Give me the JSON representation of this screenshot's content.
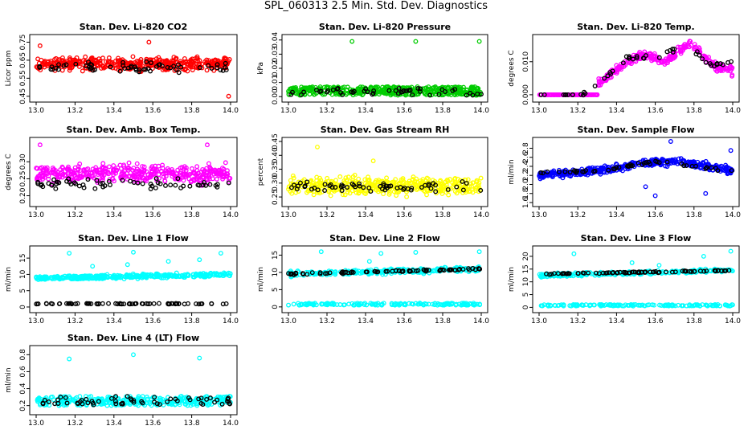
{
  "title": "SPL_060313 2.5 Min. Std. Dev. Diagnostics",
  "colors": {
    "black": "#000000",
    "red": "#ff0000",
    "green": "#00cc00",
    "magenta": "#ff00ff",
    "yellow": "#ffff00",
    "blue": "#0000ff",
    "cyan": "#00ffff"
  },
  "chart_data": [
    {
      "type": "scatter",
      "title": "Stan. Dev. Li-820 CO2",
      "ylabel": "Licor ppm",
      "xlim": [
        13.0,
        14.0
      ],
      "ylim": [
        0.44,
        0.77
      ],
      "xticks": [
        "13.0",
        "13.2",
        "13.4",
        "13.6",
        "13.8",
        "14.0"
      ],
      "yticks": [
        "0.45",
        "0.55",
        "0.65",
        "0.75"
      ],
      "ytick_values": [
        0.45,
        0.55,
        0.65,
        0.75
      ],
      "color": "red",
      "series": [
        {
          "name": "primary",
          "color": "red",
          "model": {
            "kind": "noise",
            "base": 0.63,
            "spread": 0.05,
            "n": 420
          },
          "outliers": [
            [
              13.58,
              0.75
            ],
            [
              13.99,
              0.45
            ],
            [
              13.02,
              0.73
            ]
          ]
        },
        {
          "name": "secondary",
          "color": "black",
          "model": {
            "kind": "noise",
            "base": 0.61,
            "spread": 0.04,
            "n": 60
          }
        }
      ]
    },
    {
      "type": "scatter",
      "title": "Stan. Dev. Li-820 Pressure",
      "ylabel": "kPa",
      "xlim": [
        13.0,
        14.0
      ],
      "ylim": [
        -0.001,
        0.041
      ],
      "xticks": [
        "13.0",
        "13.2",
        "13.4",
        "13.6",
        "13.8",
        "14.0"
      ],
      "yticks": [
        "0.00",
        "0.01",
        "0.02",
        "0.03",
        "0.04"
      ],
      "ytick_values": [
        0.0,
        0.01,
        0.02,
        0.03,
        0.04
      ],
      "color": "green",
      "series": [
        {
          "name": "primary",
          "color": "green",
          "model": {
            "kind": "band",
            "lo": 0.001,
            "hi": 0.007,
            "n": 420
          },
          "outliers": [
            [
              13.33,
              0.039
            ],
            [
              13.66,
              0.039
            ],
            [
              13.99,
              0.039
            ]
          ]
        },
        {
          "name": "secondary",
          "color": "black",
          "model": {
            "kind": "band",
            "lo": 0.001,
            "hi": 0.006,
            "n": 50
          }
        }
      ]
    },
    {
      "type": "scatter",
      "title": "Stan. Dev. Li-820 Temp.",
      "ylabel": "degrees C",
      "xlim": [
        13.0,
        14.0
      ],
      "ylim": [
        -0.001,
        0.017
      ],
      "xticks": [
        "13.0",
        "13.2",
        "13.4",
        "13.6",
        "13.8",
        "14.0"
      ],
      "yticks": [
        "0.000",
        "0.010"
      ],
      "ytick_values": [
        0.0,
        0.01
      ],
      "color": "magenta",
      "series": [
        {
          "name": "primary",
          "color": "magenta",
          "model": {
            "kind": "curve",
            "points": [
              [
                13.0,
                0.0
              ],
              [
                13.3,
                0.0
              ],
              [
                13.3,
                0.003
              ],
              [
                13.45,
                0.01
              ],
              [
                13.55,
                0.012
              ],
              [
                13.65,
                0.01
              ],
              [
                13.78,
                0.016
              ],
              [
                13.9,
                0.009
              ],
              [
                14.0,
                0.007
              ]
            ],
            "spread": 0.0018,
            "n": 380,
            "flatUntil": 13.3
          }
        },
        {
          "name": "secondary",
          "color": "black",
          "model": {
            "kind": "curve",
            "points": [
              [
                13.0,
                0.0
              ],
              [
                13.2,
                0.0
              ],
              [
                13.3,
                0.003
              ],
              [
                13.45,
                0.011
              ],
              [
                13.6,
                0.011
              ],
              [
                13.75,
                0.015
              ],
              [
                13.9,
                0.009
              ],
              [
                14.0,
                0.01
              ]
            ],
            "spread": 0.0012,
            "n": 50,
            "flatUntil": 13.2
          }
        }
      ]
    },
    {
      "type": "scatter",
      "title": "Stan. Dev. Amb. Box Temp.",
      "ylabel": "degrees C",
      "xlim": [
        13.0,
        14.0
      ],
      "ylim": [
        0.18,
        0.36
      ],
      "xticks": [
        "13.0",
        "13.2",
        "13.4",
        "13.6",
        "13.8",
        "14.0"
      ],
      "yticks": [
        "0.20",
        "0.25",
        "0.30"
      ],
      "ytick_values": [
        0.2,
        0.25,
        0.3
      ],
      "color": "magenta",
      "series": [
        {
          "name": "primary",
          "color": "magenta",
          "model": {
            "kind": "noise",
            "base": 0.265,
            "spread": 0.04,
            "n": 420
          },
          "outliers": [
            [
              13.88,
              0.35
            ],
            [
              13.02,
              0.35
            ]
          ]
        },
        {
          "name": "secondary",
          "color": "black",
          "model": {
            "kind": "noise",
            "base": 0.235,
            "spread": 0.02,
            "n": 60
          }
        }
      ]
    },
    {
      "type": "scatter",
      "title": "Stan. Dev. Gas Stream RH",
      "ylabel": "percent",
      "xlim": [
        13.0,
        14.0
      ],
      "ylim": [
        0.23,
        0.45
      ],
      "xticks": [
        "13.0",
        "13.2",
        "13.4",
        "13.6",
        "13.8",
        "14.0"
      ],
      "yticks": [
        "0.25",
        "0.30",
        "0.35",
        "0.40",
        "0.45"
      ],
      "ytick_values": [
        0.25,
        0.3,
        0.35,
        0.4,
        0.45
      ],
      "color": "yellow",
      "series": [
        {
          "name": "primary",
          "color": "yellow",
          "model": {
            "kind": "noise",
            "base": 0.29,
            "spread": 0.045,
            "n": 420
          },
          "outliers": [
            [
              13.15,
              0.43
            ],
            [
              13.44,
              0.38
            ]
          ]
        },
        {
          "name": "secondary",
          "color": "black",
          "model": {
            "kind": "noise",
            "base": 0.285,
            "spread": 0.025,
            "n": 60
          }
        }
      ]
    },
    {
      "type": "scatter",
      "title": "Stan. Dev. Sample Flow",
      "ylabel": "ml/min",
      "xlim": [
        13.0,
        14.0
      ],
      "ylim": [
        1.6,
        2.95
      ],
      "xticks": [
        "13.0",
        "13.2",
        "13.4",
        "13.6",
        "13.8",
        "14.0"
      ],
      "yticks": [
        "1.6",
        "1.8",
        "2.0",
        "2.2",
        "2.4",
        "2.6",
        "2.8"
      ],
      "ytick_values": [
        1.6,
        1.8,
        2.0,
        2.2,
        2.4,
        2.6,
        2.8
      ],
      "color": "blue",
      "series": [
        {
          "name": "primary",
          "color": "blue",
          "model": {
            "kind": "curve",
            "points": [
              [
                13.0,
                2.2
              ],
              [
                13.3,
                2.3
              ],
              [
                13.6,
                2.5
              ],
              [
                13.75,
                2.5
              ],
              [
                14.0,
                2.3
              ]
            ],
            "spread": 0.12,
            "n": 420
          },
          "outliers": [
            [
              13.68,
              2.95
            ],
            [
              13.86,
              1.8
            ],
            [
              13.6,
              1.75
            ],
            [
              13.55,
              1.95
            ],
            [
              13.99,
              2.75
            ]
          ]
        },
        {
          "name": "secondary",
          "color": "black",
          "model": {
            "kind": "curve",
            "points": [
              [
                13.0,
                2.25
              ],
              [
                13.3,
                2.3
              ],
              [
                13.6,
                2.5
              ],
              [
                14.0,
                2.3
              ]
            ],
            "spread": 0.05,
            "n": 50
          }
        }
      ]
    },
    {
      "type": "scatter",
      "title": "Stan. Dev. Line 1 Flow",
      "ylabel": "ml/min",
      "xlim": [
        13.0,
        14.0
      ],
      "ylim": [
        -0.5,
        17.5
      ],
      "xticks": [
        "13.0",
        "13.2",
        "13.4",
        "13.6",
        "13.8",
        "14.0"
      ],
      "yticks": [
        "0",
        "5",
        "10",
        "15"
      ],
      "ytick_values": [
        0,
        5,
        10,
        15
      ],
      "color": "cyan",
      "series": [
        {
          "name": "primary",
          "color": "cyan",
          "model": {
            "kind": "curve",
            "points": [
              [
                13.0,
                8.8
              ],
              [
                14.0,
                10.0
              ]
            ],
            "spread": 0.9,
            "n": 360
          },
          "outliers": [
            [
              13.17,
              16.5
            ],
            [
              13.5,
              16.8
            ],
            [
              13.95,
              16.5
            ],
            [
              13.47,
              13.0
            ],
            [
              13.29,
              12.5
            ],
            [
              13.68,
              14.0
            ],
            [
              13.84,
              14.5
            ]
          ]
        },
        {
          "name": "secondary",
          "color": "black",
          "model": {
            "kind": "band",
            "lo": 0.9,
            "hi": 1.1,
            "n": 70
          }
        }
      ]
    },
    {
      "type": "scatter",
      "title": "Stan. Dev. Line 2 Flow",
      "ylabel": "ml/min",
      "xlim": [
        13.0,
        14.0
      ],
      "ylim": [
        -0.5,
        16.5
      ],
      "xticks": [
        "13.0",
        "13.2",
        "13.4",
        "13.6",
        "13.8",
        "14.0"
      ],
      "yticks": [
        "0",
        "5",
        "10",
        "15"
      ],
      "ytick_values": [
        0,
        5,
        10,
        15
      ],
      "color": "cyan",
      "series": [
        {
          "name": "primary",
          "color": "cyan",
          "model": {
            "kind": "curve",
            "points": [
              [
                13.0,
                9.5
              ],
              [
                14.0,
                11.0
              ]
            ],
            "spread": 1.0,
            "n": 280
          },
          "outliers": [
            [
              13.17,
              16.0
            ],
            [
              13.48,
              15.5
            ],
            [
              13.66,
              15.8
            ],
            [
              13.99,
              16.0
            ],
            [
              13.42,
              13.2
            ]
          ]
        },
        {
          "name": "secondary",
          "color": "black",
          "model": {
            "kind": "curve",
            "points": [
              [
                13.0,
                9.5
              ],
              [
                14.0,
                11.0
              ]
            ],
            "spread": 0.4,
            "n": 80
          }
        },
        {
          "name": "tertiary",
          "color": "cyan",
          "model": {
            "kind": "band",
            "lo": 0.5,
            "hi": 1.1,
            "n": 150
          }
        }
      ]
    },
    {
      "type": "scatter",
      "title": "Stan. Dev. Line 3 Flow",
      "ylabel": "ml/min",
      "xlim": [
        13.0,
        14.0
      ],
      "ylim": [
        -0.5,
        22.5
      ],
      "xticks": [
        "13.0",
        "13.2",
        "13.4",
        "13.6",
        "13.8",
        "14.0"
      ],
      "yticks": [
        "0",
        "5",
        "10",
        "15",
        "20"
      ],
      "ytick_values": [
        0,
        5,
        10,
        15,
        20
      ],
      "color": "cyan",
      "series": [
        {
          "name": "primary",
          "color": "cyan",
          "model": {
            "kind": "curve",
            "points": [
              [
                13.0,
                12.5
              ],
              [
                14.0,
                14.5
              ]
            ],
            "spread": 1.0,
            "n": 280
          },
          "outliers": [
            [
              13.18,
              21.0
            ],
            [
              13.85,
              20.0
            ],
            [
              13.99,
              22.0
            ],
            [
              13.48,
              17.5
            ],
            [
              13.62,
              16.5
            ]
          ]
        },
        {
          "name": "secondary",
          "color": "black",
          "model": {
            "kind": "curve",
            "points": [
              [
                13.0,
                13.0
              ],
              [
                14.0,
                14.5
              ]
            ],
            "spread": 0.4,
            "n": 80
          }
        },
        {
          "name": "tertiary",
          "color": "cyan",
          "model": {
            "kind": "band",
            "lo": 0.5,
            "hi": 1.1,
            "n": 150
          }
        }
      ]
    },
    {
      "type": "scatter",
      "title": "Stan. Dev. Line 4 (LT) Flow",
      "ylabel": "ml/min",
      "xlim": [
        13.0,
        14.0
      ],
      "ylim": [
        0.14,
        0.86
      ],
      "xticks": [
        "13.0",
        "13.2",
        "13.4",
        "13.6",
        "13.8",
        "14.0"
      ],
      "yticks": [
        "0.2",
        "0.4",
        "0.6",
        "0.8"
      ],
      "ytick_values": [
        0.2,
        0.4,
        0.6,
        0.8
      ],
      "color": "cyan",
      "series": [
        {
          "name": "primary",
          "color": "cyan",
          "model": {
            "kind": "band",
            "lo": 0.2,
            "hi": 0.31,
            "n": 320
          },
          "outliers": [
            [
              13.17,
              0.75
            ],
            [
              13.5,
              0.8
            ],
            [
              13.84,
              0.76
            ]
          ]
        },
        {
          "name": "secondary",
          "color": "black",
          "model": {
            "kind": "band",
            "lo": 0.21,
            "hi": 0.31,
            "n": 60
          }
        }
      ]
    }
  ]
}
